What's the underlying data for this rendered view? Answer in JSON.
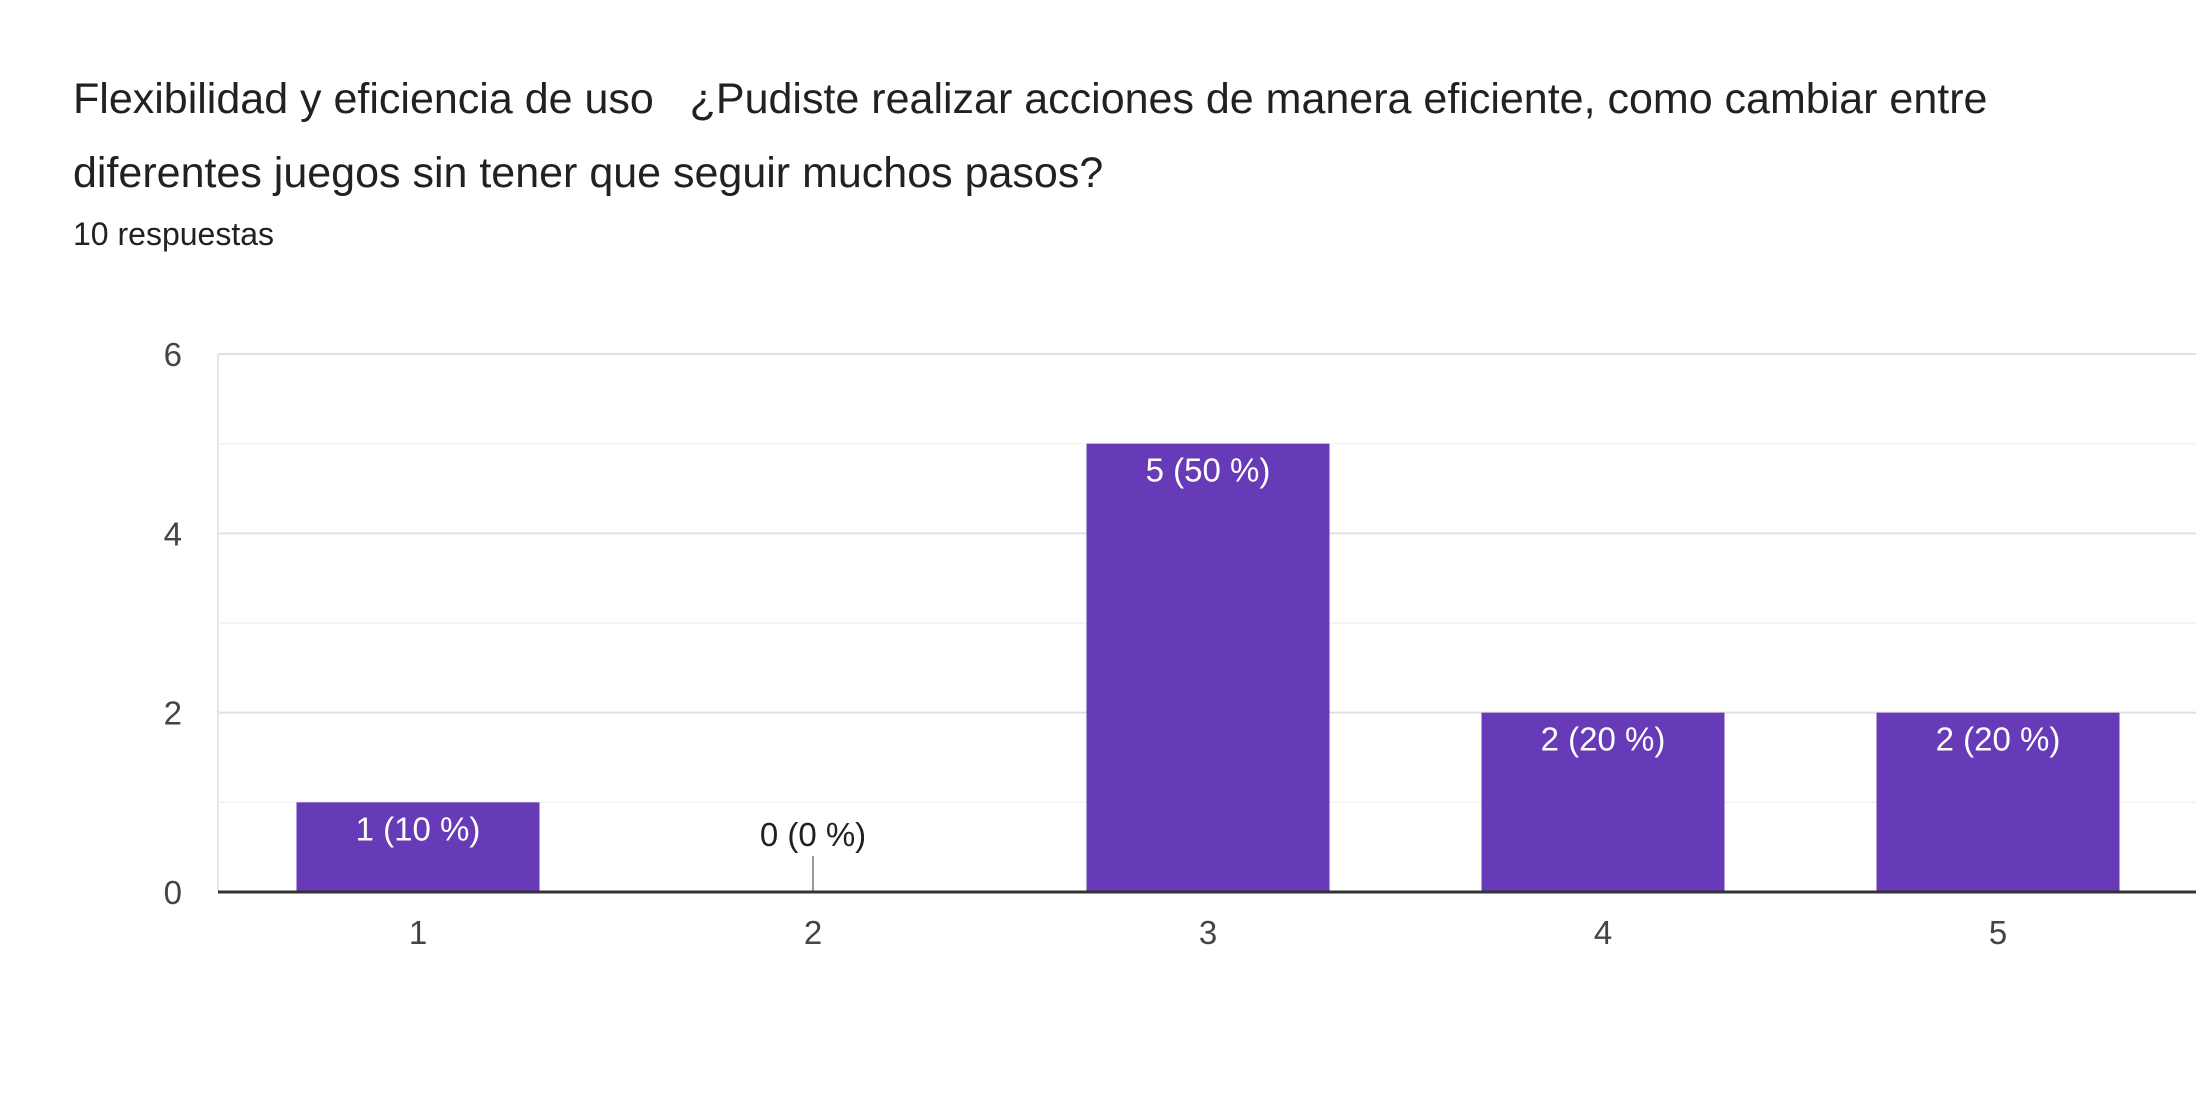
{
  "header": {
    "title": "Flexibilidad y eficiencia de uso   ¿Pudiste realizar acciones de manera eficiente, como cambiar entre diferentes juegos sin tener que seguir muchos pasos?",
    "subtitle": "10 respuestas"
  },
  "chart_data": {
    "type": "bar",
    "title": "Flexibilidad y eficiencia de uso   ¿Pudiste realizar acciones de manera eficiente, como cambiar entre diferentes juegos sin tener que seguir muchos pasos?",
    "subtitle": "10 respuestas",
    "categories": [
      "1",
      "2",
      "3",
      "4",
      "5"
    ],
    "values": [
      1,
      0,
      5,
      2,
      2
    ],
    "data_labels": [
      "1 (10 %)",
      "0 (0 %)",
      "5 (50 %)",
      "2 (20 %)",
      "2 (20 %)"
    ],
    "xlabel": "",
    "ylabel": "",
    "ylim": [
      0,
      6
    ],
    "yticks": [
      0,
      2,
      4,
      6
    ],
    "grid": true,
    "bar_color": "#673ab7"
  }
}
